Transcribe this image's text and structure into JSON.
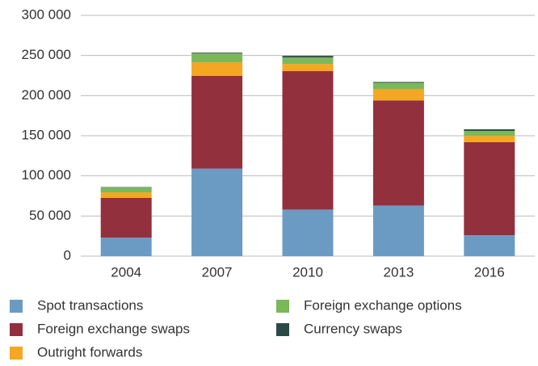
{
  "chart_data": {
    "type": "bar",
    "stacked": true,
    "categories": [
      "2004",
      "2007",
      "2010",
      "2013",
      "2016"
    ],
    "series": [
      {
        "name": "Spot transactions",
        "color": "#6b9bc3",
        "values": [
          23000,
          109000,
          58000,
          63000,
          26000
        ]
      },
      {
        "name": "Foreign exchange swaps",
        "color": "#93303e",
        "values": [
          49500,
          115500,
          172500,
          131000,
          116000
        ]
      },
      {
        "name": "Outright forwards",
        "color": "#f5a623",
        "values": [
          7000,
          17000,
          9000,
          14000,
          8000
        ]
      },
      {
        "name": "Foreign exchange options",
        "color": "#7cb85a",
        "values": [
          6000,
          11000,
          8000,
          8000,
          6000
        ]
      },
      {
        "name": "Currency swaps",
        "color": "#2a4a45",
        "values": [
          500,
          1000,
          2000,
          1000,
          2000
        ]
      }
    ],
    "ylim": [
      0,
      300000
    ],
    "yticks": [
      0,
      {
        "value": 50000,
        "label": "50 000"
      },
      {
        "value": 100000,
        "label": "100 000"
      },
      {
        "value": 150000,
        "label": "150 000"
      },
      {
        "value": 200000,
        "label": "200 000"
      },
      {
        "value": 250000,
        "label": "250 000"
      },
      {
        "value": 300000,
        "label": "300 000"
      }
    ],
    "grid": true
  }
}
